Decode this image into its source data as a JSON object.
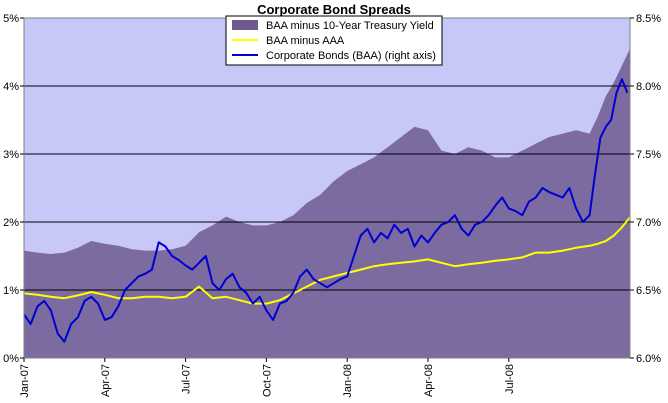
{
  "chart_data": {
    "type": "area",
    "title": "Corporate Bond Spreads",
    "legend_position": "top-center",
    "grid": true,
    "x_tick_labels": [
      "Jan-07",
      "Apr-07",
      "Jul-07",
      "Oct-07",
      "Jan-08",
      "Apr-08",
      "Jul-08"
    ],
    "x_range_months": [
      0,
      22.5
    ],
    "y_left": {
      "ticks": [
        "0%",
        "1%",
        "2%",
        "3%",
        "4%",
        "5%"
      ],
      "ylim": [
        0,
        5
      ]
    },
    "y_right": {
      "ticks": [
        "6.0%",
        "6.5%",
        "7.0%",
        "7.5%",
        "8.0%",
        "8.5%"
      ],
      "ylim": [
        6.0,
        8.5
      ]
    },
    "colors": {
      "plot_background": "#c8c8f8",
      "spread_10y_area": "#6e5a90",
      "baa_aaa_line": "#ffff00",
      "baa_line": "#0000d0"
    },
    "series": [
      {
        "name": "BAA minus 10-Year Treasury Yield",
        "axis": "left",
        "style": "area",
        "x": [
          0,
          0.5,
          1,
          1.5,
          2,
          2.5,
          3,
          3.5,
          4,
          4.5,
          5,
          5.5,
          6,
          6.5,
          7,
          7.5,
          8,
          8.5,
          9,
          9.5,
          10,
          10.5,
          11,
          11.5,
          12,
          12.5,
          13,
          13.5,
          14,
          14.5,
          15,
          15.5,
          16,
          16.5,
          17,
          17.5,
          18,
          18.5,
          19,
          19.5,
          20,
          20.5,
          21,
          21.3,
          21.6,
          21.9,
          22.2,
          22.5
        ],
        "values": [
          1.58,
          1.55,
          1.53,
          1.55,
          1.62,
          1.72,
          1.68,
          1.65,
          1.6,
          1.58,
          1.58,
          1.6,
          1.65,
          1.85,
          1.95,
          2.08,
          2.0,
          1.95,
          1.95,
          2.0,
          2.1,
          2.28,
          2.4,
          2.6,
          2.75,
          2.85,
          2.95,
          3.1,
          3.25,
          3.4,
          3.35,
          3.05,
          3.0,
          3.1,
          3.05,
          2.95,
          2.95,
          3.05,
          3.15,
          3.25,
          3.3,
          3.35,
          3.3,
          3.55,
          3.85,
          4.05,
          4.3,
          4.55
        ]
      },
      {
        "name": "BAA minus AAA",
        "axis": "left",
        "style": "line",
        "x": [
          0,
          0.5,
          1,
          1.5,
          2,
          2.5,
          3,
          3.5,
          4,
          4.5,
          5,
          5.5,
          6,
          6.5,
          7,
          7.5,
          8,
          8.5,
          9,
          9.5,
          10,
          10.5,
          11,
          11.5,
          12,
          12.5,
          13,
          13.5,
          14,
          14.5,
          15,
          15.5,
          16,
          16.5,
          17,
          17.5,
          18,
          18.5,
          19,
          19.5,
          20,
          20.5,
          21,
          21.3,
          21.6,
          21.9,
          22.2,
          22.5
        ],
        "values": [
          0.95,
          0.93,
          0.9,
          0.88,
          0.92,
          0.97,
          0.93,
          0.88,
          0.88,
          0.9,
          0.9,
          0.88,
          0.9,
          1.05,
          0.88,
          0.9,
          0.85,
          0.8,
          0.8,
          0.85,
          0.95,
          1.05,
          1.15,
          1.2,
          1.25,
          1.3,
          1.35,
          1.38,
          1.4,
          1.42,
          1.45,
          1.4,
          1.35,
          1.38,
          1.4,
          1.43,
          1.45,
          1.48,
          1.55,
          1.55,
          1.58,
          1.62,
          1.65,
          1.68,
          1.72,
          1.8,
          1.92,
          2.07
        ]
      },
      {
        "name": "Corporate Bonds (BAA) (right axis)",
        "axis": "right",
        "style": "line",
        "x": [
          0,
          0.25,
          0.5,
          0.75,
          1,
          1.25,
          1.5,
          1.75,
          2,
          2.25,
          2.5,
          2.75,
          3,
          3.25,
          3.5,
          3.75,
          4,
          4.25,
          4.5,
          4.75,
          5,
          5.25,
          5.5,
          5.75,
          6,
          6.25,
          6.5,
          6.75,
          7,
          7.25,
          7.5,
          7.75,
          8,
          8.25,
          8.5,
          8.75,
          9,
          9.25,
          9.5,
          9.75,
          10,
          10.25,
          10.5,
          10.75,
          11,
          11.25,
          11.5,
          11.75,
          12,
          12.25,
          12.5,
          12.75,
          13,
          13.25,
          13.5,
          13.75,
          14,
          14.25,
          14.5,
          14.75,
          15,
          15.25,
          15.5,
          15.75,
          16,
          16.25,
          16.5,
          16.75,
          17,
          17.25,
          17.5,
          17.75,
          18,
          18.25,
          18.5,
          18.75,
          19,
          19.25,
          19.5,
          19.75,
          20,
          20.25,
          20.5,
          20.75,
          21,
          21.2,
          21.4,
          21.6,
          21.8,
          22,
          22.2,
          22.4
        ],
        "values": [
          6.32,
          6.25,
          6.38,
          6.42,
          6.35,
          6.18,
          6.12,
          6.25,
          6.3,
          6.42,
          6.45,
          6.4,
          6.28,
          6.3,
          6.38,
          6.5,
          6.55,
          6.6,
          6.62,
          6.65,
          6.85,
          6.82,
          6.75,
          6.72,
          6.68,
          6.65,
          6.7,
          6.75,
          6.55,
          6.5,
          6.58,
          6.62,
          6.52,
          6.48,
          6.4,
          6.45,
          6.35,
          6.28,
          6.4,
          6.42,
          6.48,
          6.6,
          6.65,
          6.58,
          6.55,
          6.52,
          6.55,
          6.58,
          6.6,
          6.75,
          6.9,
          6.95,
          6.85,
          6.92,
          6.88,
          6.98,
          6.92,
          6.95,
          6.82,
          6.9,
          6.85,
          6.92,
          6.98,
          7.0,
          7.05,
          6.95,
          6.9,
          6.98,
          7.0,
          7.05,
          7.12,
          7.18,
          7.1,
          7.08,
          7.05,
          7.15,
          7.18,
          7.25,
          7.22,
          7.2,
          7.18,
          7.25,
          7.1,
          7.0,
          7.05,
          7.35,
          7.62,
          7.7,
          7.75,
          7.95,
          8.05,
          7.95
        ]
      }
    ]
  }
}
